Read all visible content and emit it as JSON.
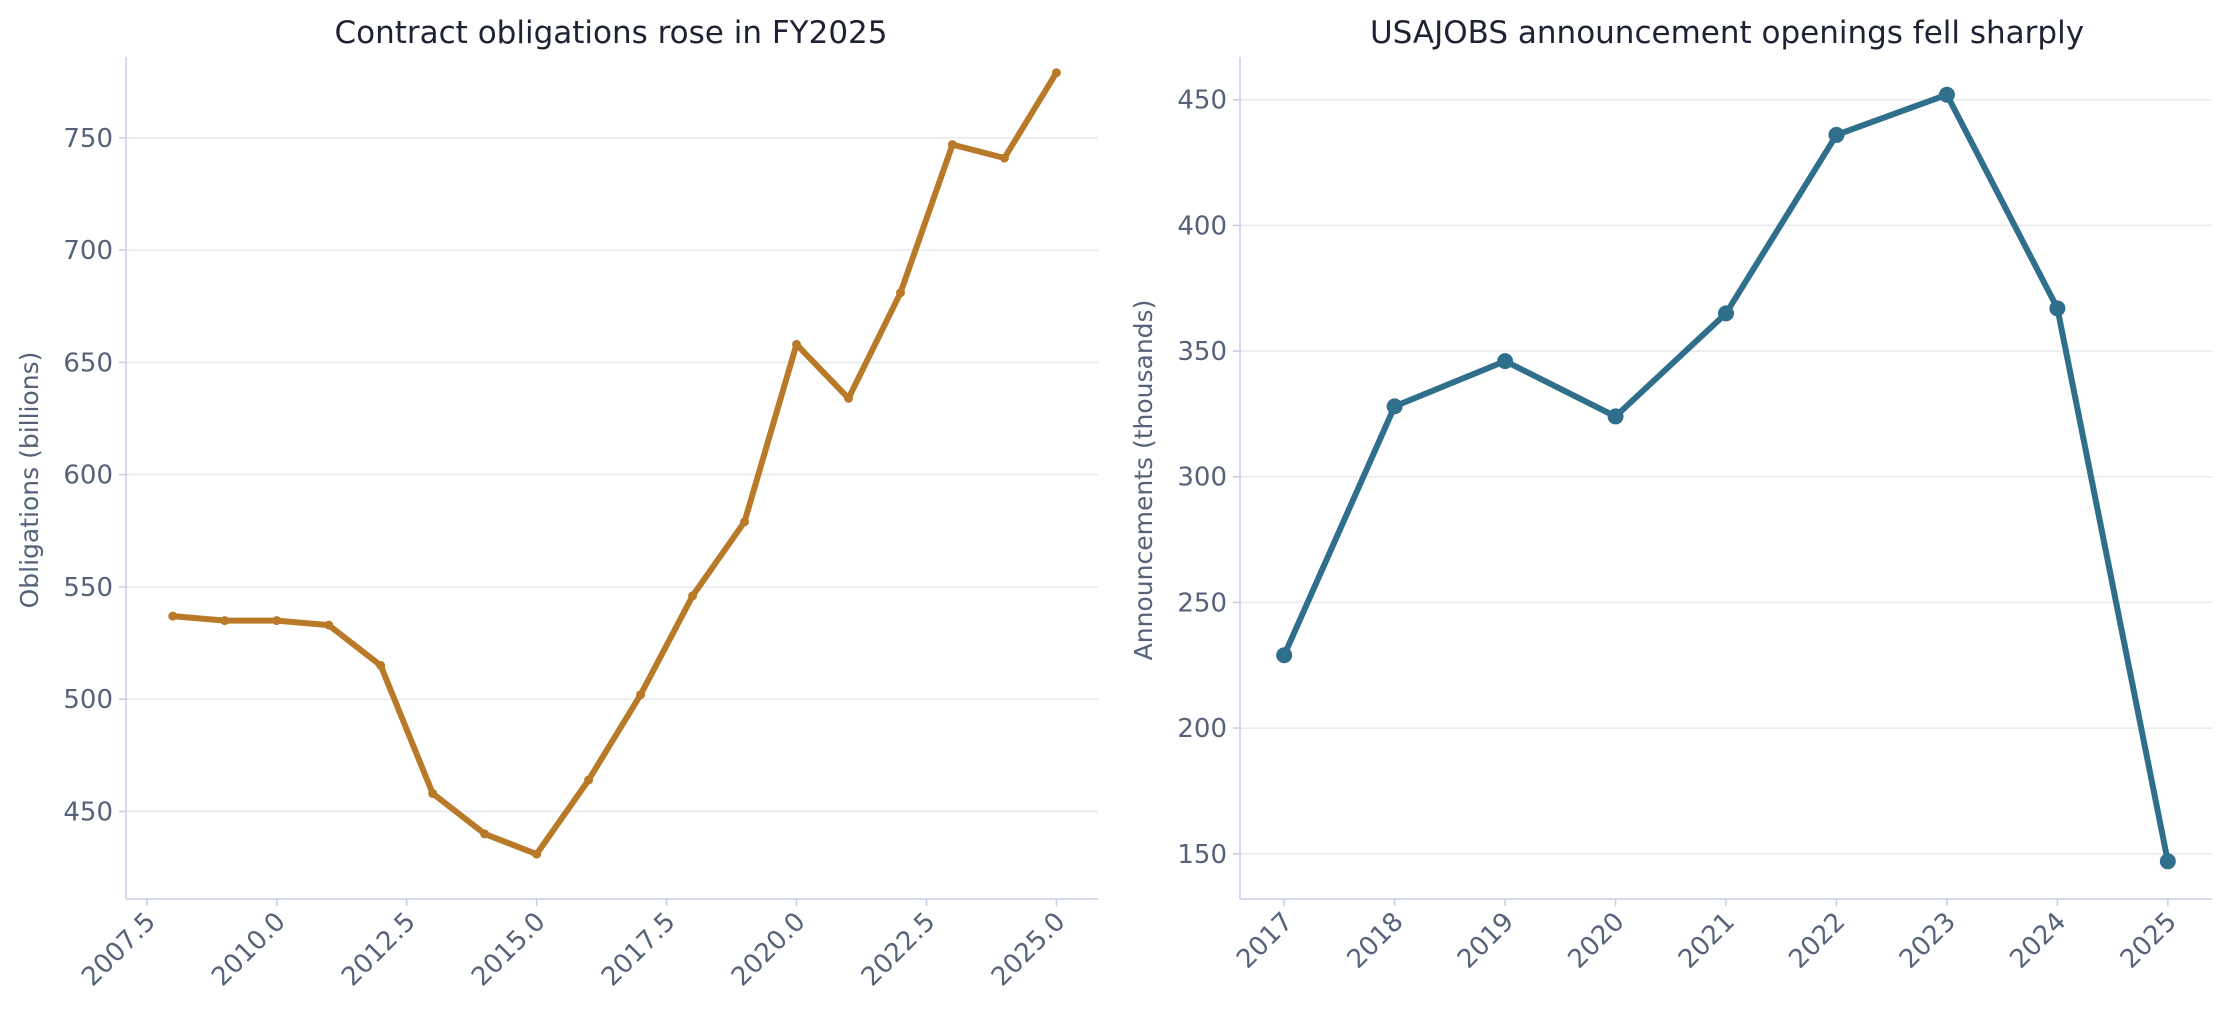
{
  "chart_data": [
    {
      "type": "line",
      "title": "Contract obligations rose in FY2025",
      "xlabel": "",
      "ylabel": "Obligations (billions)",
      "xlim": [
        2007.1,
        2025.8
      ],
      "ylim": [
        411,
        786
      ],
      "x_ticks": [
        2007.5,
        2010.0,
        2012.5,
        2015.0,
        2017.5,
        2020.0,
        2022.5,
        2025.0
      ],
      "x_tick_labels": [
        "2007.5",
        "2010.0",
        "2012.5",
        "2015.0",
        "2017.5",
        "2020.0",
        "2022.5",
        "2025.0"
      ],
      "y_ticks": [
        450,
        500,
        550,
        600,
        650,
        700,
        750
      ],
      "y_tick_labels": [
        "450",
        "500",
        "550",
        "600",
        "650",
        "700",
        "750"
      ],
      "grid": "horizontal",
      "color": "#b87a28",
      "series": [
        {
          "x": [
            2008,
            2009,
            2010,
            2011,
            2012,
            2013,
            2014,
            2015,
            2016,
            2017,
            2018,
            2019,
            2020,
            2021,
            2022,
            2023,
            2024,
            2025
          ],
          "values": [
            537,
            535,
            535,
            533,
            515,
            458,
            440,
            431,
            464,
            502,
            546,
            579,
            658,
            634,
            681,
            747,
            741,
            779
          ]
        }
      ]
    },
    {
      "type": "line",
      "title": "USAJOBS announcement openings fell sharply",
      "xlabel": "",
      "ylabel": "Announcements (thousands)",
      "xlim": [
        2016.6,
        2025.4
      ],
      "ylim": [
        132,
        467
      ],
      "x_ticks": [
        2017,
        2018,
        2019,
        2020,
        2021,
        2022,
        2023,
        2024,
        2025
      ],
      "x_tick_labels": [
        "2017",
        "2018",
        "2019",
        "2020",
        "2021",
        "2022",
        "2023",
        "2024",
        "2025"
      ],
      "y_ticks": [
        150,
        200,
        250,
        300,
        350,
        400,
        450
      ],
      "y_tick_labels": [
        "150",
        "200",
        "250",
        "300",
        "350",
        "400",
        "450"
      ],
      "grid": "horizontal",
      "color": "#2f6f8c",
      "series": [
        {
          "x": [
            2017,
            2018,
            2019,
            2020,
            2021,
            2022,
            2023,
            2024,
            2025
          ],
          "values": [
            229,
            328,
            346,
            324,
            365,
            436,
            452,
            367,
            147
          ]
        }
      ]
    }
  ]
}
